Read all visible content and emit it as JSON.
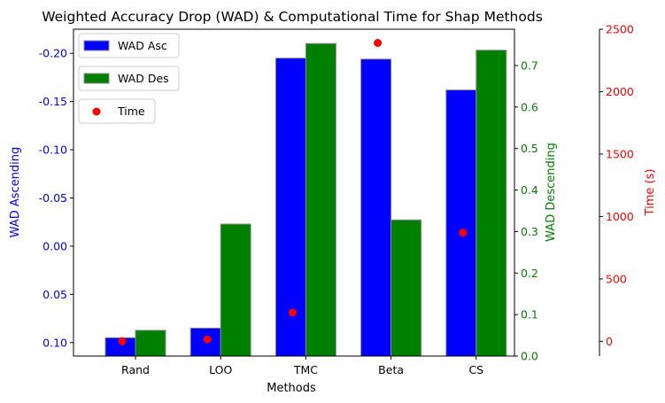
{
  "chart_data": {
    "type": "bar",
    "title": "Weighted Accuracy Drop (WAD) & Computational Time for Shap Methods",
    "xlabel": "Methods",
    "categories": [
      "Rand",
      "LOO",
      "TMC",
      "Beta",
      "CS"
    ],
    "axes": {
      "left": {
        "label": "WAD Ascending",
        "inverted": true,
        "ylim": [
          0.114,
          -0.225
        ],
        "ticks": [
          "-0.20",
          "-0.15",
          "-0.10",
          "-0.05",
          "0.00",
          "0.05",
          "0.10"
        ],
        "tick_values": [
          -0.2,
          -0.15,
          -0.1,
          -0.05,
          0.0,
          0.05,
          0.1
        ],
        "color": "#0000ff"
      },
      "right": {
        "label": "WAD Descending",
        "ylim": [
          0,
          0.7875
        ],
        "ticks": [
          "0.0",
          "0.1",
          "0.2",
          "0.3",
          "0.4",
          "0.5",
          "0.6",
          "0.7"
        ],
        "tick_values": [
          0,
          0.1,
          0.2,
          0.3,
          0.4,
          0.5,
          0.6,
          0.7
        ],
        "color": "#008000"
      },
      "far_right": {
        "label": "Time (s)",
        "ylim": [
          -118,
          2500
        ],
        "ticks": [
          "0",
          "500",
          "1000",
          "1500",
          "2000",
          "2500"
        ],
        "tick_values": [
          0,
          500,
          1000,
          1500,
          2000,
          2500
        ],
        "color": "#ff0000"
      }
    },
    "series": [
      {
        "name": "WAD Asc",
        "axis": "left",
        "kind": "bar",
        "color": "#0000ff",
        "values": [
          0.095,
          0.085,
          -0.195,
          -0.194,
          -0.162
        ]
      },
      {
        "name": "WAD Des",
        "axis": "right",
        "kind": "bar",
        "color": "#008000",
        "values": [
          0.062,
          0.318,
          0.753,
          0.328,
          0.737
        ]
      },
      {
        "name": "Time",
        "axis": "far_right",
        "kind": "scatter",
        "color": "#ff0000",
        "values": [
          0,
          15,
          230,
          2390,
          870
        ]
      }
    ],
    "legend": {
      "placement": "top-left",
      "entries": [
        "WAD Asc",
        "WAD Des",
        "Time"
      ]
    }
  }
}
